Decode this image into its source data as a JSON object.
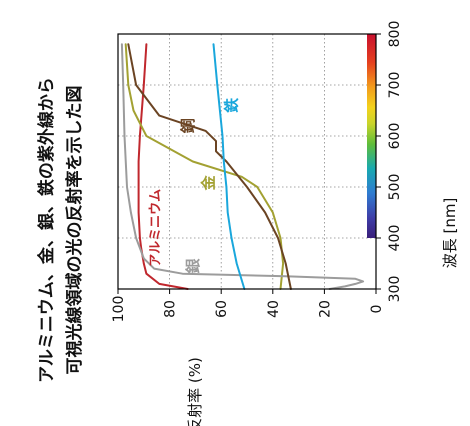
{
  "chart_data": {
    "type": "line",
    "title_line1": "アルミニウム、金、銀、鉄の紫外線から",
    "title_line2": "可視光線領域の光の反射率を示した図",
    "xlabel": "波長 [nm]",
    "ylabel": "反射率 (%)",
    "xlim": [
      300,
      800
    ],
    "ylim": [
      0,
      100
    ],
    "x_ticks": [
      300,
      400,
      500,
      600,
      700,
      800
    ],
    "y_ticks": [
      0,
      20,
      40,
      60,
      80,
      100
    ],
    "grid": true,
    "visible_spectrum_bar": {
      "from": 400,
      "to": 800
    },
    "series": [
      {
        "name": "アルミニウム",
        "color": "#c0272d",
        "x": [
          300,
          310,
          330,
          350,
          380,
          400,
          450,
          500,
          550,
          600,
          700,
          780
        ],
        "y": [
          73,
          84,
          89,
          90,
          91,
          91.5,
          92,
          92,
          92,
          91.5,
          90,
          89
        ]
      },
      {
        "name": "金",
        "color": "#a3a132",
        "x": [
          300,
          350,
          400,
          450,
          500,
          520,
          550,
          600,
          650,
          700,
          780
        ],
        "y": [
          37,
          36,
          37,
          40,
          46,
          52,
          71,
          89,
          94,
          96,
          97
        ]
      },
      {
        "name": "銀",
        "color": "#9c9c9c",
        "x": [
          300,
          305,
          310,
          315,
          320,
          325,
          330,
          340,
          360,
          400,
          450,
          500,
          600,
          700,
          780
        ],
        "y": [
          18,
          12,
          8,
          5,
          8,
          35,
          75,
          86,
          90,
          93,
          95,
          96.5,
          97.5,
          98,
          98.5
        ]
      },
      {
        "name": "銅",
        "color": "#6b4423",
        "x": [
          300,
          350,
          400,
          450,
          500,
          550,
          570,
          590,
          610,
          620,
          640,
          700,
          780
        ],
        "y": [
          33,
          35,
          38,
          43,
          50,
          58,
          62,
          62,
          66,
          72,
          84,
          93,
          96
        ]
      },
      {
        "name": "鉄",
        "color": "#1aa7dc",
        "x": [
          300,
          350,
          400,
          450,
          500,
          550,
          600,
          650,
          700,
          780
        ],
        "y": [
          51,
          54,
          56,
          57.5,
          58,
          59,
          59.5,
          60.5,
          61.5,
          63
        ]
      }
    ]
  }
}
